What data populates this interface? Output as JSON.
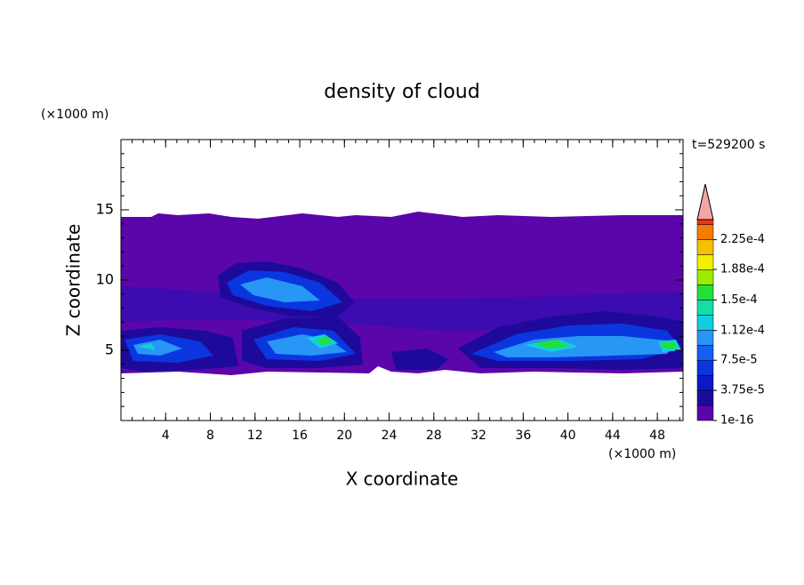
{
  "chart_data": {
    "type": "contour",
    "title": "density of cloud",
    "time_label": "t=529200 s",
    "x_label": "X coordinate",
    "y_label": "Z coordinate",
    "x_unit": "(×1000 m)",
    "y_unit": "(×1000 m)",
    "xlim": [
      0,
      50.3
    ],
    "ylim": [
      0,
      20
    ],
    "xticks": [
      4,
      8,
      12,
      16,
      20,
      24,
      28,
      32,
      36,
      40,
      44,
      48
    ],
    "yticks": [
      5,
      10,
      15
    ],
    "colorbar": {
      "clim": [
        1e-16,
        0.00025
      ],
      "levels": [
        1e-16,
        1.875e-05,
        3.75e-05,
        5.625e-05,
        7.5e-05,
        9.375e-05,
        0.0001125,
        0.00013125,
        0.00015,
        0.00016875,
        0.0001875,
        0.00020625,
        0.000225,
        0.00024375
      ],
      "colors": [
        "#5a06aa",
        "#1e0a9a",
        "#0c18c8",
        "#0a36e0",
        "#1460f0",
        "#2896f4",
        "#10d0e0",
        "#10e0a8",
        "#22e03c",
        "#9cec00",
        "#f0f000",
        "#f4c000",
        "#f47c00",
        "#f03414"
      ],
      "over_color": "#f4a4a4",
      "ticks": [
        {
          "value": 1e-16,
          "label": "1e-16"
        },
        {
          "value": 3.75e-05,
          "label": "3.75e-5"
        },
        {
          "value": 7.5e-05,
          "label": "7.5e-5"
        },
        {
          "value": 0.000112,
          "label": "1.12e-4"
        },
        {
          "value": 0.00015,
          "label": "1.5e-4"
        },
        {
          "value": 0.000188,
          "label": "1.88e-4"
        },
        {
          "value": 0.000225,
          "label": "2.25e-4"
        }
      ]
    }
  }
}
